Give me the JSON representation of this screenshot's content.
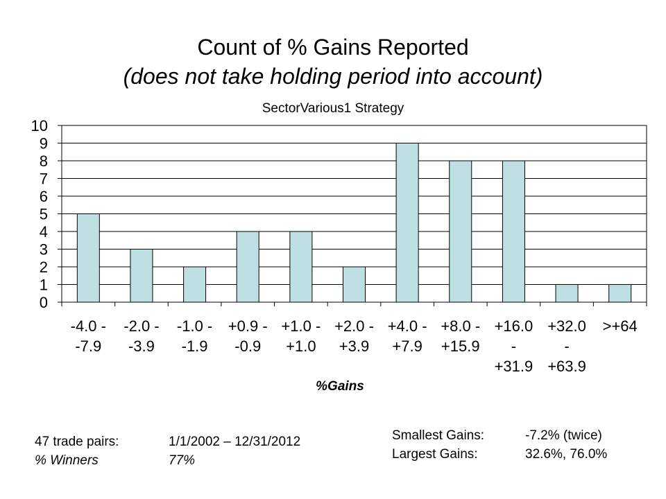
{
  "title": "Count of % Gains Reported",
  "title_note": "(does not take holding period into account)",
  "subtitle": "SectorVarious1 Strategy",
  "chart_data": {
    "type": "bar",
    "categories": [
      [
        "-4.0 -",
        "-7.9"
      ],
      [
        "-2.0 -",
        "-3.9"
      ],
      [
        "-1.0 -",
        "-1.9"
      ],
      [
        "+0.9 -",
        "-0.9"
      ],
      [
        "+1.0 -",
        "+1.0"
      ],
      [
        "+2.0 -",
        "+3.9"
      ],
      [
        "+4.0 -",
        "+7.9"
      ],
      [
        "+8.0 -",
        "+15.9"
      ],
      [
        "+16.0",
        "-",
        "+31.9"
      ],
      [
        "+32.0",
        "-",
        "+63.9"
      ],
      [
        ">+64"
      ]
    ],
    "values": [
      5,
      3,
      2,
      4,
      4,
      2,
      9,
      8,
      8,
      1,
      1
    ],
    "ylim": [
      0,
      10
    ],
    "yticks": [
      0,
      1,
      2,
      3,
      4,
      5,
      6,
      7,
      8,
      9,
      10
    ],
    "xlabel": "%Gains",
    "ylabel": "",
    "grid": true,
    "bar_color": "#bfe0e3",
    "bar_edge": "#000000"
  },
  "stats_left": {
    "trade_pairs_label": "47 trade pairs:",
    "date_range": "1/1/2002 – 12/31/2012",
    "winners_label": "% Winners",
    "winners_value": "77%"
  },
  "stats_right": {
    "smallest_label": "Smallest Gains:",
    "smallest_value": "-7.2% (twice)",
    "largest_label": "Largest Gains:",
    "largest_value": "32.6%, 76.0%"
  }
}
